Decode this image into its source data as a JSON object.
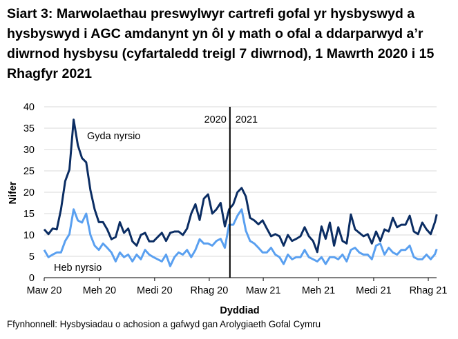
{
  "chart_data": {
    "type": "line",
    "title": "Siart 3: Marwolaethau preswylwyr cartrefi gofal yr hysbyswyd a hysbyswyd i AGC amdanynt yn ôl y math o ofal a ddarparwyd a’r diwrnod hysbysu (cyfartaledd treigl 7 diwrnod), 1 Mawrth 2020 i 15 Rhagfyr 2021",
    "xlabel": "Dyddiad",
    "ylabel": "Nifer",
    "ylim": [
      0,
      40
    ],
    "yticks": [
      0,
      5,
      10,
      15,
      20,
      25,
      30,
      35,
      40
    ],
    "xlim": [
      "2020-03-01",
      "2021-12-15"
    ],
    "xticks": [
      {
        "date": "2020-03-01",
        "label": "Maw 20"
      },
      {
        "date": "2020-06-01",
        "label": "Meh 20"
      },
      {
        "date": "2020-09-01",
        "label": "Medi 20"
      },
      {
        "date": "2020-12-01",
        "label": "Rhag 20"
      },
      {
        "date": "2021-03-01",
        "label": "Maw 21"
      },
      {
        "date": "2021-06-01",
        "label": "Meh 21"
      },
      {
        "date": "2021-09-01",
        "label": "Medi 21"
      },
      {
        "date": "2021-12-01",
        "label": "Rhag 21"
      }
    ],
    "grid": "horizontal",
    "year_divider": {
      "date": "2021-01-01",
      "left_label": "2020",
      "right_label": "2021"
    },
    "x": [
      "2020-03-01",
      "2020-03-08",
      "2020-03-15",
      "2020-03-22",
      "2020-03-29",
      "2020-04-05",
      "2020-04-12",
      "2020-04-19",
      "2020-04-26",
      "2020-05-03",
      "2020-05-10",
      "2020-05-17",
      "2020-05-24",
      "2020-05-31",
      "2020-06-07",
      "2020-06-14",
      "2020-06-21",
      "2020-06-28",
      "2020-07-05",
      "2020-07-12",
      "2020-07-19",
      "2020-07-26",
      "2020-08-02",
      "2020-08-09",
      "2020-08-16",
      "2020-08-23",
      "2020-08-30",
      "2020-09-06",
      "2020-09-13",
      "2020-09-20",
      "2020-09-27",
      "2020-10-04",
      "2020-10-11",
      "2020-10-18",
      "2020-10-25",
      "2020-11-01",
      "2020-11-08",
      "2020-11-15",
      "2020-11-22",
      "2020-11-29",
      "2020-12-06",
      "2020-12-13",
      "2020-12-20",
      "2020-12-27",
      "2021-01-03",
      "2021-01-10",
      "2021-01-17",
      "2021-01-24",
      "2021-01-31",
      "2021-02-07",
      "2021-02-14",
      "2021-02-21",
      "2021-02-28",
      "2021-03-07",
      "2021-03-14",
      "2021-03-21",
      "2021-03-28",
      "2021-04-04",
      "2021-04-11",
      "2021-04-18",
      "2021-04-25",
      "2021-05-02",
      "2021-05-09",
      "2021-05-16",
      "2021-05-23",
      "2021-05-30",
      "2021-06-06",
      "2021-06-13",
      "2021-06-20",
      "2021-06-27",
      "2021-07-04",
      "2021-07-11",
      "2021-07-18",
      "2021-07-25",
      "2021-08-01",
      "2021-08-08",
      "2021-08-15",
      "2021-08-22",
      "2021-08-29",
      "2021-09-05",
      "2021-09-12",
      "2021-09-19",
      "2021-09-26",
      "2021-10-03",
      "2021-10-10",
      "2021-10-17",
      "2021-10-24",
      "2021-10-31",
      "2021-11-07",
      "2021-11-14",
      "2021-11-21",
      "2021-11-28",
      "2021-12-05",
      "2021-12-12",
      "2021-12-15"
    ],
    "series": [
      {
        "name": "Gyda nyrsio",
        "color": "#0b2d63",
        "values": [
          11.3,
          10.2,
          11.5,
          11.3,
          16,
          22.6,
          25.3,
          37,
          31,
          28,
          27,
          20.5,
          16,
          13,
          13,
          11.3,
          9,
          9.5,
          13,
          10.5,
          11.5,
          8.5,
          7.5,
          10,
          10.5,
          8.5,
          8.5,
          9.5,
          10.5,
          8.6,
          10.5,
          10.8,
          10.8,
          10,
          11.5,
          15,
          17.2,
          13.5,
          18.5,
          19.5,
          15,
          16,
          17.5,
          12,
          16,
          17.2,
          20,
          21,
          19,
          14,
          13.4,
          12.5,
          13.4,
          11.5,
          9.7,
          10.2,
          9.7,
          7.5,
          10,
          8.6,
          9.1,
          9.7,
          11.8,
          9.7,
          8.6,
          6,
          12,
          9.1,
          12.9,
          7.5,
          11.8,
          8.6,
          8,
          14.8,
          11.3,
          10.5,
          9.7,
          10.2,
          8,
          10.8,
          8.6,
          11.3,
          10.8,
          14,
          11.8,
          12.4,
          12.4,
          14.5,
          10.8,
          10.2,
          12.9,
          11.3,
          10.2,
          13,
          14.8
        ]
      },
      {
        "name": "Heb nyrsio",
        "color": "#5aa0f0",
        "values": [
          6.5,
          4.8,
          5.4,
          5.9,
          5.9,
          8.6,
          10.2,
          16,
          13.4,
          12.9,
          15,
          10,
          7.5,
          6.5,
          8,
          7,
          5.9,
          3.8,
          5.9,
          4.8,
          5.4,
          3.8,
          5.4,
          4.3,
          6.5,
          5.4,
          4.8,
          4.3,
          3.8,
          5.4,
          2.7,
          4.8,
          5.9,
          5.4,
          6.5,
          4.8,
          6.5,
          9,
          8,
          8,
          7.5,
          8.6,
          9.1,
          7,
          12.4,
          12.4,
          14.5,
          16,
          11,
          8.6,
          8,
          7,
          5.9,
          5.9,
          7,
          5.4,
          4.8,
          3.2,
          5.4,
          4.3,
          4.8,
          4.8,
          6.5,
          4.8,
          4.3,
          3.8,
          4.8,
          3.2,
          4.8,
          4.8,
          4.3,
          5.4,
          3.8,
          6.5,
          7,
          5.9,
          5.4,
          5.4,
          4.3,
          7.5,
          8,
          5.4,
          7,
          5.9,
          5.4,
          6.5,
          6.5,
          7.5,
          4.8,
          4.3,
          4.3,
          5.4,
          4.3,
          5.5,
          6.7
        ]
      }
    ],
    "legend": "inline labels"
  },
  "source": "Ffynhonnell: Hysbysiadau o achosion a gafwyd gan Arolygiaeth Gofal Cymru"
}
